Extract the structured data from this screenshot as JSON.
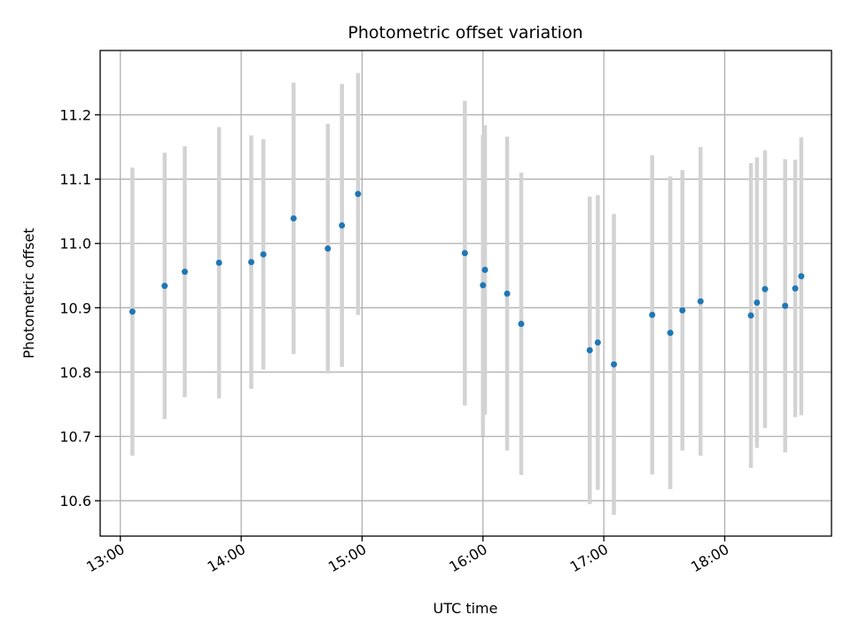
{
  "chart_data": {
    "type": "scatter",
    "title": "Photometric offset variation",
    "xlabel": "UTC time",
    "ylabel": "Photometric offset",
    "x_ticks": [
      "13:00",
      "14:00",
      "15:00",
      "16:00",
      "17:00",
      "18:00"
    ],
    "y_ticks": [
      "10.6",
      "10.7",
      "10.8",
      "10.9",
      "11.0",
      "11.1",
      "11.2"
    ],
    "xlim": [
      "12:50",
      "18:53"
    ],
    "ylim": [
      10.545,
      11.3
    ],
    "grid": true,
    "colors": {
      "points": "#1f77b4",
      "errorbars": "#d3d3d3",
      "grid": "#b0b0b0"
    },
    "series": [
      {
        "points": [
          {
            "x": "13:06",
            "y": 10.894,
            "err": 0.224
          },
          {
            "x": "13:22",
            "y": 10.934,
            "err": 0.207
          },
          {
            "x": "13:32",
            "y": 10.956,
            "err": 0.195
          },
          {
            "x": "13:49",
            "y": 10.97,
            "err": 0.211
          },
          {
            "x": "14:05",
            "y": 10.971,
            "err": 0.197
          },
          {
            "x": "14:11",
            "y": 10.983,
            "err": 0.179
          },
          {
            "x": "14:26",
            "y": 11.039,
            "err": 0.211
          },
          {
            "x": "14:43",
            "y": 10.992,
            "err": 0.194
          },
          {
            "x": "14:50",
            "y": 11.028,
            "err": 0.22
          },
          {
            "x": "14:58",
            "y": 11.077,
            "err": 0.188
          },
          {
            "x": "15:51",
            "y": 10.985,
            "err": 0.237
          },
          {
            "x": "16:00",
            "y": 10.935,
            "err": 0.234
          },
          {
            "x": "16:01",
            "y": 10.959,
            "err": 0.225
          },
          {
            "x": "16:12",
            "y": 10.922,
            "err": 0.244
          },
          {
            "x": "16:19",
            "y": 10.875,
            "err": 0.235
          },
          {
            "x": "16:53",
            "y": 10.834,
            "err": 0.239
          },
          {
            "x": "16:57",
            "y": 10.846,
            "err": 0.229
          },
          {
            "x": "17:05",
            "y": 10.812,
            "err": 0.234
          },
          {
            "x": "17:24",
            "y": 10.889,
            "err": 0.248
          },
          {
            "x": "17:33",
            "y": 10.861,
            "err": 0.243
          },
          {
            "x": "17:39",
            "y": 10.896,
            "err": 0.218
          },
          {
            "x": "17:48",
            "y": 10.91,
            "err": 0.24
          },
          {
            "x": "18:13",
            "y": 10.888,
            "err": 0.237
          },
          {
            "x": "18:16",
            "y": 10.908,
            "err": 0.226
          },
          {
            "x": "18:20",
            "y": 10.929,
            "err": 0.216
          },
          {
            "x": "18:30",
            "y": 10.903,
            "err": 0.228
          },
          {
            "x": "18:35",
            "y": 10.93,
            "err": 0.2
          },
          {
            "x": "18:38",
            "y": 10.949,
            "err": 0.216
          }
        ]
      }
    ]
  }
}
